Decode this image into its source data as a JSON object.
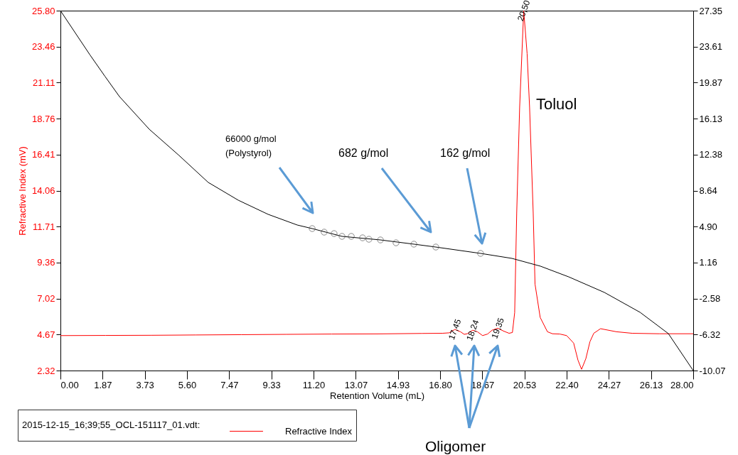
{
  "chart_data": {
    "type": "line",
    "xlabel": "Retention Volume (mL)",
    "ylabel": "Refractive Index (mV)",
    "legend_title": "2015-12-15_16;39;55_OCL-151117_01.vdt:",
    "legend": "bottom",
    "xlim": [
      0,
      28
    ],
    "xticks": [
      {
        "value": 0,
        "label": "0.00"
      },
      {
        "value": 1.87,
        "label": "1.87"
      },
      {
        "value": 3.73,
        "label": "3.73"
      },
      {
        "value": 5.6,
        "label": "5.60"
      },
      {
        "value": 7.47,
        "label": "7.47"
      },
      {
        "value": 9.33,
        "label": "9.33"
      },
      {
        "value": 11.2,
        "label": "11.20"
      },
      {
        "value": 13.07,
        "label": "13.07"
      },
      {
        "value": 14.93,
        "label": "14.93"
      },
      {
        "value": 16.8,
        "label": "16.80"
      },
      {
        "value": 18.67,
        "label": "18.67"
      },
      {
        "value": 20.53,
        "label": "20.53"
      },
      {
        "value": 22.4,
        "label": "22.40"
      },
      {
        "value": 24.27,
        "label": "24.27"
      },
      {
        "value": 26.13,
        "label": "26.13"
      },
      {
        "value": 28,
        "label": "28.00"
      }
    ],
    "ylim": [
      2.32,
      25.8
    ],
    "yticks": [
      2.32,
      4.67,
      7.02,
      9.36,
      11.71,
      14.06,
      16.41,
      18.76,
      21.11,
      23.46,
      {
        "value": 25.8,
        "label": "25.80"
      }
    ],
    "y2lim": [
      -10.07,
      27.35
    ],
    "y2ticks": [
      -10.07,
      -6.32,
      -2.58,
      1.16,
      {
        "value": 4.9,
        "label": "4.90"
      },
      8.64,
      12.38,
      16.13,
      19.87,
      23.61,
      27.35
    ],
    "series": [
      {
        "name": "Refractive Index",
        "color": "#ff0000",
        "x": [
          0,
          2,
          4,
          6,
          8,
          10,
          12,
          14,
          16,
          16.9,
          17.2,
          17.45,
          17.7,
          17.87,
          18,
          18.24,
          18.45,
          18.68,
          18.9,
          19.1,
          19.35,
          19.6,
          19.85,
          20,
          20.1,
          20.19,
          20.32,
          20.5,
          20.65,
          20.76,
          20.92,
          21,
          21.23,
          21.55,
          21.77,
          22.1,
          22.4,
          22.71,
          22.9,
          23.06,
          23.25,
          23.43,
          23.6,
          23.9,
          24.6,
          25.3,
          26.5,
          28
        ],
        "values": [
          4.6,
          4.61,
          4.62,
          4.64,
          4.66,
          4.68,
          4.7,
          4.71,
          4.74,
          4.75,
          4.78,
          5.0,
          4.85,
          4.68,
          4.72,
          4.95,
          4.85,
          4.6,
          4.7,
          4.95,
          5.08,
          4.9,
          4.75,
          4.8,
          6.1,
          12.6,
          19.5,
          25.8,
          23.0,
          19.5,
          12.6,
          7.96,
          5.78,
          4.85,
          4.72,
          4.7,
          4.6,
          4.11,
          3.0,
          2.4,
          3.1,
          4.2,
          4.75,
          5.05,
          4.85,
          4.75,
          4.72,
          4.72
        ]
      },
      {
        "color": "#000000",
        "axis": "y2",
        "x": [
          0,
          0.65,
          1.31,
          1.97,
          2.61,
          3.93,
          5.25,
          6.54,
          7.87,
          9.19,
          10.48,
          11.14,
          12.46,
          14.16,
          15.64,
          16.61,
          18.59,
          19.98,
          21.24,
          22.49,
          24.07,
          25.65,
          26.9,
          28
        ],
        "values": [
          27.35,
          25.06,
          22.74,
          20.52,
          18.42,
          15.02,
          12.29,
          9.49,
          7.64,
          6.17,
          5.06,
          4.69,
          3.88,
          3.51,
          3.07,
          2.77,
          2.11,
          1.59,
          0.78,
          -0.33,
          -1.95,
          -4.02,
          -6.23,
          -10.07
        ]
      },
      {
        "type": "scatter",
        "marker": "circle",
        "color": "#555555",
        "axis": "y2",
        "x": [
          11.14,
          11.67,
          12.11,
          12.46,
          12.87,
          13.37,
          13.65,
          14.16,
          14.85,
          15.64,
          16.61,
          18.59
        ],
        "values": [
          4.69,
          4.32,
          4.17,
          3.88,
          3.88,
          3.73,
          3.58,
          3.51,
          3.21,
          3.07,
          2.77,
          2.11
        ]
      }
    ],
    "annotations": [
      {
        "text": "17,45",
        "x": 17.45,
        "y": 5.0
      },
      {
        "text": "18,24",
        "x": 18.24,
        "y": 4.95
      },
      {
        "text": "19,35",
        "x": 19.35,
        "y": 5.08
      },
      {
        "text": "20,50",
        "x": 20.5,
        "y": 25.8
      },
      "Toluol",
      "66000 g/mol\n(Polystyrol)",
      "682 g/mol",
      "162 g/mol",
      "Oligomer"
    ]
  }
}
